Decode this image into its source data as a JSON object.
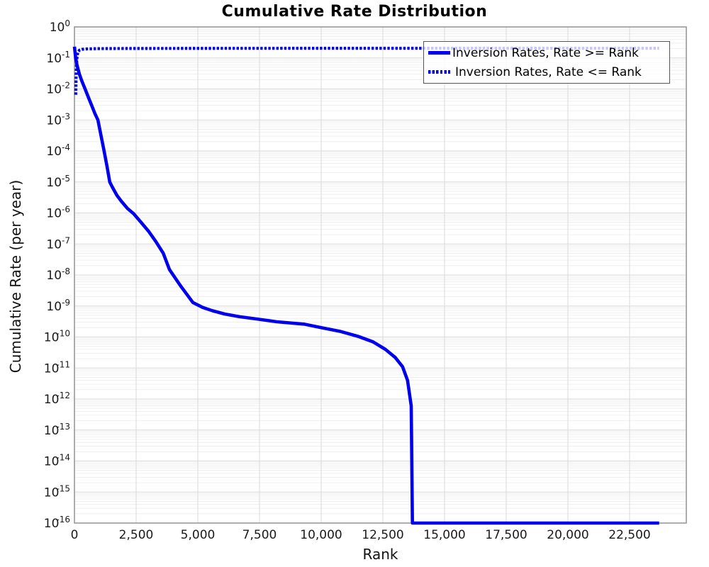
{
  "title": "Cumulative Rate Distribution",
  "axes": {
    "xlabel": "Rank",
    "ylabel": "Cumulative Rate (per year)"
  },
  "legend": {
    "position": "upper right",
    "items": [
      {
        "label": "Inversion Rates, Rate >= Rank",
        "style": "solid"
      },
      {
        "label": "Inversion Rates, Rate <= Rank",
        "style": "dotted"
      }
    ]
  },
  "colors": {
    "line_blue": "#0000EE",
    "grid_major": "#d9d9d9",
    "grid_minor": "#ececec",
    "spine": "#999999",
    "tick_label": "#1a1a1a",
    "legend_border": "#555555"
  },
  "chart_data": {
    "type": "line",
    "title": "Cumulative Rate Distribution",
    "xlabel": "Rank",
    "ylabel": "Cumulative Rate (per year)",
    "x_scale": "linear",
    "y_scale": "log",
    "xlim": [
      0,
      24800
    ],
    "ylim": [
      1e-16,
      1
    ],
    "x_ticks": [
      0,
      2500,
      5000,
      7500,
      10000,
      12500,
      15000,
      17500,
      20000,
      22500
    ],
    "y_tick_exponents": [
      0,
      -1,
      -2,
      -3,
      -4,
      -5,
      -6,
      -7,
      -8,
      -9,
      -10,
      -11,
      -12,
      -13,
      -14,
      -15,
      -16
    ],
    "grid": "major+minor",
    "legend_position": "upper right",
    "series": [
      {
        "name": "Inversion Rates, Rate >= Rank",
        "style": "solid",
        "color": "#0000EE",
        "points": [
          [
            0,
            0.23
          ],
          [
            50,
            0.1
          ],
          [
            100,
            0.06
          ],
          [
            200,
            0.03
          ],
          [
            300,
            0.018
          ],
          [
            430,
            0.01
          ],
          [
            560,
            0.0055
          ],
          [
            700,
            0.0029
          ],
          [
            830,
            0.0016
          ],
          [
            950,
            0.001
          ],
          [
            1075,
            0.00032
          ],
          [
            1200,
            0.0001
          ],
          [
            1320,
            3.2e-05
          ],
          [
            1430,
            1e-05
          ],
          [
            1530,
            7e-06
          ],
          [
            1720,
            3.7e-06
          ],
          [
            1900,
            2.4e-06
          ],
          [
            2150,
            1.4e-06
          ],
          [
            2400,
            9.5e-07
          ],
          [
            2700,
            5e-07
          ],
          [
            3000,
            2.6e-07
          ],
          [
            3300,
            1.2e-07
          ],
          [
            3600,
            5e-08
          ],
          [
            3850,
            1.5e-08
          ],
          [
            4300,
            4.5e-09
          ],
          [
            4800,
            1.3e-09
          ],
          [
            5200,
            9e-10
          ],
          [
            5600,
            7e-10
          ],
          [
            6100,
            5.5e-10
          ],
          [
            6700,
            4.5e-10
          ],
          [
            7400,
            3.8e-10
          ],
          [
            8200,
            3.1e-10
          ],
          [
            9300,
            2.6e-10
          ],
          [
            10000,
            2e-10
          ],
          [
            10800,
            1.5e-10
          ],
          [
            11500,
            1.05e-10
          ],
          [
            12100,
            7e-11
          ],
          [
            12600,
            4e-11
          ],
          [
            13000,
            2.2e-11
          ],
          [
            13300,
            1.1e-11
          ],
          [
            13500,
            4e-12
          ],
          [
            13650,
            6e-13
          ],
          [
            13700,
            1e-16
          ],
          [
            23700,
            1e-16
          ]
        ]
      },
      {
        "name": "Inversion Rates, Rate <= Rank",
        "style": "dotted",
        "color": "#0000EE",
        "points": [
          [
            55,
            0.0065
          ],
          [
            60,
            0.012
          ],
          [
            70,
            0.03
          ],
          [
            85,
            0.065
          ],
          [
            105,
            0.11
          ],
          [
            140,
            0.155
          ],
          [
            200,
            0.178
          ],
          [
            300,
            0.19
          ],
          [
            500,
            0.196
          ],
          [
            900,
            0.2
          ],
          [
            2000,
            0.202
          ],
          [
            6000,
            0.204
          ],
          [
            12000,
            0.205
          ],
          [
            23700,
            0.205
          ]
        ]
      }
    ]
  }
}
